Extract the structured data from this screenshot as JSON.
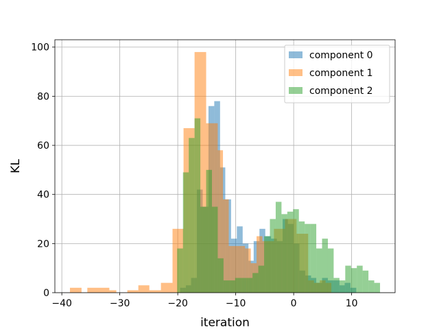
{
  "chart_data": {
    "type": "histogram",
    "xlabel": "iteration",
    "ylabel": "KL",
    "xlim": [
      -41.2,
      17.5
    ],
    "ylim": [
      0,
      103
    ],
    "xticks": [
      -40,
      -30,
      -20,
      -10,
      0,
      10
    ],
    "yticks": [
      0,
      20,
      40,
      60,
      80,
      100
    ],
    "grid": true,
    "legend": "top-right",
    "alpha": 0.5,
    "series": [
      {
        "name": "component 0",
        "color": "#1f77b4",
        "bins": [
          [
            -19.6,
            -18.6,
            2
          ],
          [
            -18.6,
            -17.7,
            3
          ],
          [
            -17.7,
            -16.7,
            6
          ],
          [
            -16.7,
            -15.7,
            42
          ],
          [
            -15.7,
            -14.7,
            35
          ],
          [
            -14.7,
            -13.7,
            76
          ],
          [
            -13.7,
            -12.7,
            78
          ],
          [
            -12.7,
            -11.8,
            51
          ],
          [
            -11.8,
            -10.8,
            38
          ],
          [
            -10.8,
            -9.8,
            22
          ],
          [
            -9.8,
            -8.8,
            27
          ],
          [
            -8.8,
            -7.8,
            20
          ],
          [
            -7.8,
            -6.9,
            13
          ],
          [
            -6.9,
            -5.9,
            21
          ],
          [
            -5.9,
            -4.9,
            26
          ],
          [
            -4.9,
            -3.9,
            23
          ],
          [
            -3.9,
            -2.9,
            22
          ],
          [
            -2.9,
            -1.9,
            21
          ],
          [
            -1.9,
            -1.0,
            30
          ],
          [
            -1.0,
            0.0,
            28
          ],
          [
            0.0,
            1.0,
            20
          ],
          [
            1.0,
            2.0,
            9
          ],
          [
            2.0,
            3.0,
            7
          ],
          [
            3.0,
            3.9,
            6
          ],
          [
            3.9,
            4.9,
            4
          ],
          [
            4.9,
            5.9,
            6
          ],
          [
            5.9,
            6.9,
            5
          ],
          [
            6.9,
            7.9,
            5
          ],
          [
            7.9,
            8.8,
            3
          ],
          [
            8.8,
            9.8,
            4
          ],
          [
            9.8,
            10.8,
            2
          ]
        ]
      },
      {
        "name": "component 1",
        "color": "#ff7f0e",
        "bins": [
          [
            -38.6,
            -36.6,
            2
          ],
          [
            -35.6,
            -31.8,
            2
          ],
          [
            -31.8,
            -30.6,
            1
          ],
          [
            -28.7,
            -26.8,
            1
          ],
          [
            -26.8,
            -24.9,
            3
          ],
          [
            -24.9,
            -22.9,
            1
          ],
          [
            -22.9,
            -20.9,
            4
          ],
          [
            -20.9,
            -19.0,
            26
          ],
          [
            -19.0,
            -17.1,
            67
          ],
          [
            -17.1,
            -15.1,
            98
          ],
          [
            -15.1,
            -13.1,
            69
          ],
          [
            -13.1,
            -12.2,
            58
          ],
          [
            -12.2,
            -11.2,
            38
          ],
          [
            -11.2,
            -8.4,
            19
          ],
          [
            -8.4,
            -7.4,
            18
          ],
          [
            -7.4,
            -6.4,
            12
          ],
          [
            -6.4,
            -5.4,
            23
          ],
          [
            -5.4,
            -3.4,
            21
          ],
          [
            -3.4,
            -1.5,
            26
          ],
          [
            -1.5,
            0.5,
            30
          ],
          [
            0.5,
            2.5,
            24
          ],
          [
            2.5,
            3.5,
            5
          ],
          [
            3.5,
            4.5,
            4
          ],
          [
            4.5,
            5.5,
            5
          ],
          [
            5.5,
            6.5,
            4
          ]
        ]
      },
      {
        "name": "component 2",
        "color": "#2ca02c",
        "bins": [
          [
            -20.1,
            -19.1,
            18
          ],
          [
            -19.1,
            -18.1,
            49
          ],
          [
            -18.1,
            -17.1,
            63
          ],
          [
            -17.1,
            -16.1,
            71
          ],
          [
            -16.1,
            -15.1,
            35
          ],
          [
            -15.1,
            -14.1,
            50
          ],
          [
            -14.1,
            -13.1,
            35
          ],
          [
            -13.1,
            -12.1,
            14
          ],
          [
            -12.1,
            -11.1,
            5
          ],
          [
            -11.1,
            -10.1,
            5
          ],
          [
            -10.1,
            -9.1,
            6
          ],
          [
            -9.1,
            -8.1,
            6
          ],
          [
            -8.1,
            -7.1,
            6
          ],
          [
            -7.1,
            -6.1,
            8
          ],
          [
            -6.1,
            -5.1,
            11
          ],
          [
            -5.1,
            -4.1,
            23
          ],
          [
            -4.1,
            -3.1,
            30
          ],
          [
            -3.1,
            -2.1,
            37
          ],
          [
            -2.1,
            -1.1,
            32
          ],
          [
            -1.1,
            -0.1,
            33
          ],
          [
            -0.1,
            0.9,
            34
          ],
          [
            0.9,
            1.9,
            29
          ],
          [
            1.9,
            2.9,
            28
          ],
          [
            2.9,
            3.9,
            28
          ],
          [
            3.9,
            4.9,
            18
          ],
          [
            4.9,
            5.9,
            22
          ],
          [
            5.9,
            6.9,
            18
          ],
          [
            6.9,
            7.9,
            6
          ],
          [
            7.9,
            8.9,
            5
          ],
          [
            8.9,
            9.9,
            11
          ],
          [
            9.9,
            10.9,
            10
          ],
          [
            10.9,
            11.9,
            11
          ],
          [
            11.9,
            12.9,
            9
          ],
          [
            12.9,
            13.9,
            5
          ],
          [
            13.9,
            14.9,
            4
          ]
        ]
      }
    ]
  }
}
